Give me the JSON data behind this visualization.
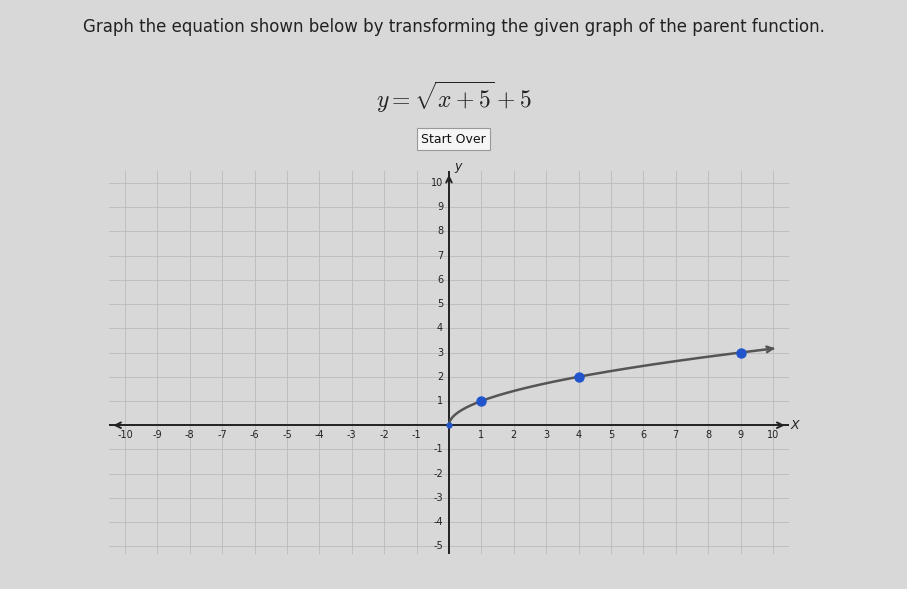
{
  "title_line1": "Graph the equation shown below by transforming the given graph of the parent function.",
  "button_text": "Start Over",
  "xlim": [
    -10,
    10
  ],
  "ylim": [
    -5,
    10
  ],
  "xticks": [
    -10,
    -9,
    -8,
    -7,
    -6,
    -5,
    -4,
    -3,
    -2,
    -1,
    1,
    2,
    3,
    4,
    5,
    6,
    7,
    8,
    9,
    10
  ],
  "yticks": [
    -5,
    -4,
    -3,
    -2,
    -1,
    1,
    2,
    3,
    4,
    5,
    6,
    7,
    8,
    9,
    10
  ],
  "curve_color": "#555555",
  "dot_color": "#2255cc",
  "dot_points": [
    [
      1,
      1
    ],
    [
      4,
      2
    ],
    [
      9,
      3
    ]
  ],
  "background_color": "#d8d8d8",
  "plot_bg_color": "#d8d8d8",
  "grid_color": "#bbbbbb",
  "title_fontsize": 12,
  "eq_fontsize": 17,
  "tick_fontsize": 7
}
